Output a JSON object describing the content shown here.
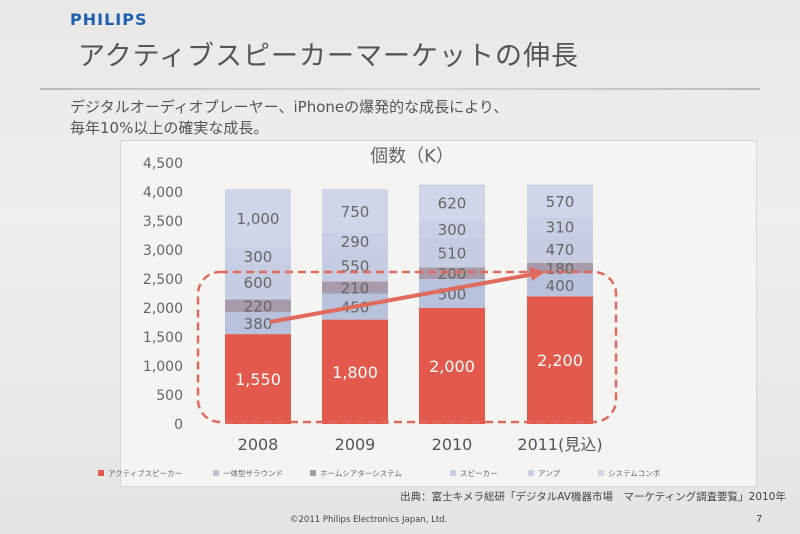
{
  "slide": {
    "logo": "PHILIPS",
    "title": "アクティブスピーカーマーケットの伸長",
    "subtitle_line1": "デジタルオーディオプレーヤー、iPhoneの爆発的な成長により、",
    "subtitle_line2": "毎年10%以上の確実な成長。",
    "source": "出典：富士キメラ総研「デジタルAV機器市場　マーケティング調査要覧」2010年",
    "footer": "©2011 Philips Electronics Japan, Ltd.",
    "page_number": "7"
  },
  "chart_data": {
    "type": "bar",
    "stacked": true,
    "title": "個数（K）",
    "xlabel": "",
    "ylabel": "",
    "categories": [
      "2008",
      "2009",
      "2010",
      "2011(見込)"
    ],
    "ylim": [
      0,
      4500
    ],
    "yticks": [
      "0",
      "500",
      "1,000",
      "1,500",
      "2,000",
      "2,500",
      "3,000",
      "3,500",
      "4,000",
      "4,500"
    ],
    "grid": false,
    "legend_position": "bottom",
    "series": [
      {
        "name": "アクティブスピーカー",
        "color": "#e35a4c",
        "values": [
          1550,
          1800,
          2000,
          2200
        ],
        "labels": [
          "1,550",
          "1,800",
          "2,000",
          "2,200"
        ]
      },
      {
        "name": "一体型サラウンド",
        "color": "#b8c2dc",
        "values": [
          380,
          450,
          500,
          400
        ],
        "labels": [
          "380",
          "450",
          "500",
          "400"
        ]
      },
      {
        "name": "ホームシアターシステム",
        "color": "#a89aaa",
        "values": [
          220,
          210,
          200,
          180
        ],
        "labels": [
          "220",
          "210",
          "200",
          "180"
        ]
      },
      {
        "name": "スピーカー",
        "color": "#c6cde2",
        "values": [
          600,
          550,
          510,
          470
        ],
        "labels": [
          "600",
          "550",
          "510",
          "470"
        ]
      },
      {
        "name": "アンプ",
        "color": "#c9cfe4",
        "values": [
          300,
          290,
          300,
          310
        ],
        "labels": [
          "300",
          "290",
          "300",
          "310"
        ]
      },
      {
        "name": "システムコンポ",
        "color": "#d0d6ea",
        "values": [
          1000,
          750,
          620,
          570
        ],
        "labels": [
          "1,000",
          "750",
          "620",
          "570"
        ]
      }
    ],
    "annotations": {
      "trend_arrow": {
        "from_category": "2008",
        "to_category": "2011(見込)",
        "color": "#e06b5c"
      },
      "highlight_box": {
        "style": "dashed",
        "color": "#e06b5c",
        "around_series": "アクティブスピーカー"
      }
    }
  }
}
